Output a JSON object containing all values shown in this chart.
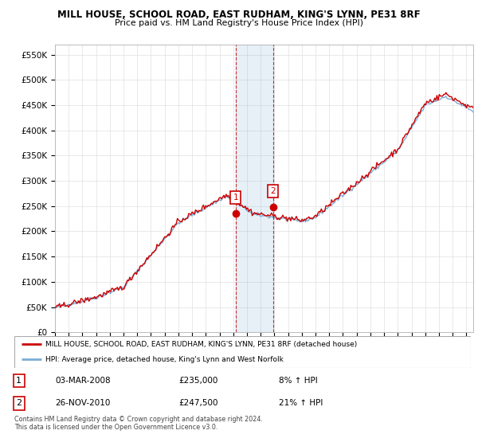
{
  "title1": "MILL HOUSE, SCHOOL ROAD, EAST RUDHAM, KING'S LYNN, PE31 8RF",
  "title2": "Price paid vs. HM Land Registry's House Price Index (HPI)",
  "ylim": [
    0,
    570000
  ],
  "yticks": [
    0,
    50000,
    100000,
    150000,
    200000,
    250000,
    300000,
    350000,
    400000,
    450000,
    500000,
    550000
  ],
  "ytick_labels": [
    "£0",
    "£50K",
    "£100K",
    "£150K",
    "£200K",
    "£250K",
    "£300K",
    "£350K",
    "£400K",
    "£450K",
    "£500K",
    "£550K"
  ],
  "sale1_date": 2008.17,
  "sale1_price": 235000,
  "sale2_date": 2010.9,
  "sale2_price": 247500,
  "property_color": "#cc0000",
  "hpi_color": "#7aaed6",
  "legend1": "MILL HOUSE, SCHOOL ROAD, EAST RUDHAM, KING'S LYNN, PE31 8RF (detached house)",
  "legend2": "HPI: Average price, detached house, King's Lynn and West Norfolk",
  "footnote": "Contains HM Land Registry data © Crown copyright and database right 2024.\nThis data is licensed under the Open Government Licence v3.0.",
  "grid_color": "#e0e0e0"
}
